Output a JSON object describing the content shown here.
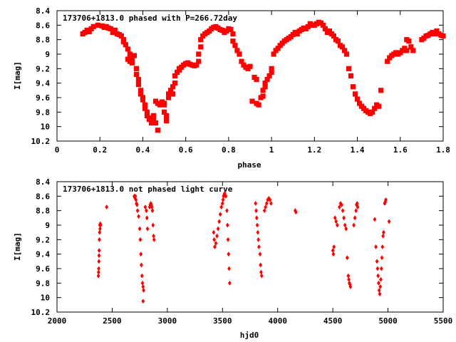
{
  "colors": {
    "points": "#ff0000",
    "axes": "#000000",
    "background": "#ffffff"
  },
  "chart_data": [
    {
      "type": "scatter",
      "title": "173706+1813.0 phased with P=266.72day",
      "xlabel": "phase",
      "ylabel": "I[mag]",
      "xlim": [
        0,
        1.8
      ],
      "ylim": [
        8.4,
        10.2
      ],
      "y_inverted": true,
      "xticks": [
        "0",
        "0.2",
        "0.4",
        "0.6",
        "0.8",
        "1",
        "1.2",
        "1.4",
        "1.6",
        "1.8"
      ],
      "yticks": [
        "8.4",
        "8.6",
        "8.8",
        "9",
        "9.2",
        "9.4",
        "9.6",
        "9.8",
        "10",
        "10.2"
      ],
      "grid": false,
      "legend": "none",
      "points": [
        [
          0.12,
          8.72
        ],
        [
          0.13,
          8.7
        ],
        [
          0.14,
          8.67
        ],
        [
          0.15,
          8.69
        ],
        [
          0.16,
          8.65
        ],
        [
          0.17,
          8.62
        ],
        [
          0.19,
          8.6
        ],
        [
          0.21,
          8.61
        ],
        [
          0.22,
          8.63
        ],
        [
          0.23,
          8.62
        ],
        [
          0.24,
          8.64
        ],
        [
          0.25,
          8.65
        ],
        [
          0.26,
          8.7
        ],
        [
          0.27,
          8.67
        ],
        [
          0.28,
          8.72
        ],
        [
          0.29,
          8.73
        ],
        [
          0.3,
          8.75
        ],
        [
          0.31,
          8.8
        ],
        [
          0.31,
          8.83
        ],
        [
          0.32,
          8.87
        ],
        [
          0.33,
          8.93
        ],
        [
          0.34,
          9.0
        ],
        [
          0.33,
          9.07
        ],
        [
          0.34,
          9.1
        ],
        [
          0.35,
          9.12
        ],
        [
          0.35,
          9.05
        ],
        [
          0.36,
          9.02
        ],
        [
          0.37,
          9.2
        ],
        [
          0.37,
          9.28
        ],
        [
          0.38,
          9.35
        ],
        [
          0.38,
          9.42
        ],
        [
          0.39,
          9.5
        ],
        [
          0.39,
          9.55
        ],
        [
          0.4,
          9.6
        ],
        [
          0.4,
          9.63
        ],
        [
          0.41,
          9.7
        ],
        [
          0.41,
          9.75
        ],
        [
          0.42,
          9.8
        ],
        [
          0.42,
          9.85
        ],
        [
          0.43,
          9.88
        ],
        [
          0.43,
          9.9
        ],
        [
          0.44,
          9.92
        ],
        [
          0.44,
          9.95
        ],
        [
          0.45,
          9.85
        ],
        [
          0.45,
          9.9
        ],
        [
          0.46,
          9.95
        ],
        [
          0.47,
          10.05
        ],
        [
          0.46,
          9.65
        ],
        [
          0.47,
          9.68
        ],
        [
          0.48,
          9.7
        ],
        [
          0.49,
          9.66
        ],
        [
          0.5,
          9.68
        ],
        [
          0.5,
          9.7
        ],
        [
          0.5,
          9.8
        ],
        [
          0.51,
          9.85
        ],
        [
          0.51,
          9.92
        ],
        [
          0.52,
          9.6
        ],
        [
          0.52,
          9.55
        ],
        [
          0.53,
          9.5
        ],
        [
          0.54,
          9.45
        ],
        [
          0.54,
          9.55
        ],
        [
          0.55,
          9.4
        ],
        [
          0.55,
          9.3
        ],
        [
          0.56,
          9.25
        ],
        [
          0.57,
          9.22
        ],
        [
          0.57,
          9.2
        ],
        [
          0.58,
          9.18
        ],
        [
          0.59,
          9.15
        ],
        [
          0.6,
          9.13
        ],
        [
          0.61,
          9.12
        ],
        [
          0.62,
          9.14
        ],
        [
          0.63,
          9.15
        ],
        [
          0.64,
          9.16
        ],
        [
          0.65,
          9.15
        ],
        [
          0.66,
          9.1
        ],
        [
          0.66,
          9.0
        ],
        [
          0.67,
          8.9
        ],
        [
          0.67,
          8.8
        ],
        [
          0.68,
          8.75
        ],
        [
          0.69,
          8.72
        ],
        [
          0.7,
          8.7
        ],
        [
          0.71,
          8.68
        ],
        [
          0.72,
          8.65
        ],
        [
          0.73,
          8.63
        ],
        [
          0.74,
          8.62
        ],
        [
          0.75,
          8.64
        ],
        [
          0.76,
          8.66
        ],
        [
          0.77,
          8.67
        ],
        [
          0.78,
          8.7
        ],
        [
          0.79,
          8.68
        ],
        [
          0.8,
          8.65
        ],
        [
          0.81,
          8.66
        ],
        [
          0.82,
          8.72
        ],
        [
          0.82,
          8.82
        ],
        [
          0.83,
          8.88
        ],
        [
          0.84,
          8.95
        ],
        [
          0.85,
          9.0
        ],
        [
          0.86,
          9.1
        ],
        [
          0.87,
          9.15
        ],
        [
          0.88,
          9.18
        ],
        [
          0.89,
          9.2
        ],
        [
          0.9,
          9.17
        ],
        [
          0.91,
          9.65
        ],
        [
          0.92,
          9.32
        ],
        [
          0.93,
          9.35
        ],
        [
          0.93,
          9.68
        ],
        [
          0.94,
          9.7
        ],
        [
          0.95,
          9.6
        ],
        [
          0.96,
          9.58
        ],
        [
          0.96,
          9.5
        ],
        [
          0.97,
          9.45
        ],
        [
          0.97,
          9.4
        ],
        [
          0.98,
          9.35
        ],
        [
          0.99,
          9.3
        ],
        [
          1.0,
          9.25
        ],
        [
          1.0,
          9.2
        ],
        [
          1.01,
          9.0
        ],
        [
          1.02,
          8.95
        ],
        [
          1.03,
          8.92
        ],
        [
          1.04,
          8.88
        ],
        [
          1.05,
          8.85
        ],
        [
          1.06,
          8.82
        ],
        [
          1.07,
          8.8
        ],
        [
          1.08,
          8.78
        ],
        [
          1.09,
          8.76
        ],
        [
          1.1,
          8.73
        ],
        [
          1.11,
          8.7
        ],
        [
          1.12,
          8.72
        ],
        [
          1.13,
          8.68
        ],
        [
          1.14,
          8.66
        ],
        [
          1.15,
          8.64
        ],
        [
          1.16,
          8.65
        ],
        [
          1.17,
          8.62
        ],
        [
          1.18,
          8.58
        ],
        [
          1.19,
          8.6
        ],
        [
          1.2,
          8.6
        ],
        [
          1.21,
          8.58
        ],
        [
          1.22,
          8.56
        ],
        [
          1.23,
          8.57
        ],
        [
          1.24,
          8.6
        ],
        [
          1.25,
          8.65
        ],
        [
          1.26,
          8.7
        ],
        [
          1.27,
          8.68
        ],
        [
          1.28,
          8.72
        ],
        [
          1.29,
          8.75
        ],
        [
          1.3,
          8.8
        ],
        [
          1.31,
          8.82
        ],
        [
          1.32,
          8.88
        ],
        [
          1.33,
          8.9
        ],
        [
          1.34,
          8.95
        ],
        [
          1.35,
          9.0
        ],
        [
          1.36,
          9.2
        ],
        [
          1.37,
          9.3
        ],
        [
          1.38,
          9.45
        ],
        [
          1.39,
          9.55
        ],
        [
          1.4,
          9.62
        ],
        [
          1.41,
          9.68
        ],
        [
          1.42,
          9.72
        ],
        [
          1.43,
          9.75
        ],
        [
          1.44,
          9.78
        ],
        [
          1.45,
          9.8
        ],
        [
          1.46,
          9.82
        ],
        [
          1.47,
          9.8
        ],
        [
          1.48,
          9.75
        ],
        [
          1.49,
          9.7
        ],
        [
          1.5,
          9.72
        ],
        [
          1.51,
          9.5
        ],
        [
          1.54,
          9.1
        ],
        [
          1.55,
          9.05
        ],
        [
          1.56,
          9.02
        ],
        [
          1.57,
          9.0
        ],
        [
          1.58,
          8.98
        ],
        [
          1.59,
          9.0
        ],
        [
          1.6,
          8.98
        ],
        [
          1.61,
          8.95
        ],
        [
          1.62,
          8.92
        ],
        [
          1.63,
          8.95
        ],
        [
          1.63,
          8.8
        ],
        [
          1.64,
          8.82
        ],
        [
          1.65,
          8.9
        ],
        [
          1.66,
          8.95
        ],
        [
          1.7,
          8.8
        ],
        [
          1.71,
          8.78
        ],
        [
          1.72,
          8.75
        ],
        [
          1.73,
          8.74
        ],
        [
          1.74,
          8.72
        ],
        [
          1.75,
          8.7
        ],
        [
          1.76,
          8.72
        ],
        [
          1.77,
          8.68
        ],
        [
          1.78,
          8.72
        ],
        [
          1.79,
          8.74
        ],
        [
          1.8,
          8.75
        ]
      ]
    },
    {
      "type": "scatter",
      "title": "173706+1813.0 not phased light curve",
      "xlabel": "hjd0",
      "ylabel": "I[mag]",
      "xlim": [
        2000,
        5500
      ],
      "ylim": [
        8.4,
        10.2
      ],
      "y_inverted": true,
      "xticks": [
        "2000",
        "2500",
        "3000",
        "3500",
        "4000",
        "4500",
        "5000",
        "5500"
      ],
      "yticks": [
        "8.4",
        "8.6",
        "8.8",
        "9",
        "9.2",
        "9.4",
        "9.6",
        "9.8",
        "10",
        "10.2"
      ],
      "grid": false,
      "legend": "none",
      "points": [
        [
          2375,
          9.7
        ],
        [
          2377,
          9.65
        ],
        [
          2378,
          9.6
        ],
        [
          2380,
          9.5
        ],
        [
          2381,
          9.42
        ],
        [
          2382,
          9.35
        ],
        [
          2384,
          9.2
        ],
        [
          2386,
          9.1
        ],
        [
          2388,
          9.0
        ],
        [
          2390,
          9.05
        ],
        [
          2392,
          8.98
        ],
        [
          2395,
          9.0
        ],
        [
          2450,
          8.75
        ],
        [
          2700,
          8.6
        ],
        [
          2705,
          8.62
        ],
        [
          2710,
          8.6
        ],
        [
          2715,
          8.65
        ],
        [
          2720,
          8.7
        ],
        [
          2725,
          8.72
        ],
        [
          2730,
          8.8
        ],
        [
          2740,
          8.88
        ],
        [
          2750,
          9.05
        ],
        [
          2755,
          9.2
        ],
        [
          2760,
          9.4
        ],
        [
          2765,
          9.55
        ],
        [
          2770,
          9.7
        ],
        [
          2775,
          9.8
        ],
        [
          2780,
          9.85
        ],
        [
          2785,
          9.9
        ],
        [
          2780,
          10.05
        ],
        [
          2800,
          8.75
        ],
        [
          2810,
          8.8
        ],
        [
          2815,
          8.9
        ],
        [
          2820,
          9.05
        ],
        [
          2840,
          8.75
        ],
        [
          2845,
          8.72
        ],
        [
          2850,
          8.7
        ],
        [
          2855,
          8.72
        ],
        [
          2860,
          8.75
        ],
        [
          2865,
          8.8
        ],
        [
          2870,
          9.0
        ],
        [
          2875,
          9.15
        ],
        [
          2880,
          9.2
        ],
        [
          3420,
          9.1
        ],
        [
          3425,
          9.2
        ],
        [
          3430,
          9.3
        ],
        [
          3440,
          9.25
        ],
        [
          3450,
          9.15
        ],
        [
          3460,
          9.05
        ],
        [
          3470,
          8.95
        ],
        [
          3480,
          8.85
        ],
        [
          3490,
          8.75
        ],
        [
          3500,
          8.7
        ],
        [
          3505,
          8.65
        ],
        [
          3510,
          8.6
        ],
        [
          3515,
          8.58
        ],
        [
          3520,
          8.56
        ],
        [
          3530,
          8.6
        ],
        [
          3540,
          8.8
        ],
        [
          3545,
          9.0
        ],
        [
          3550,
          9.2
        ],
        [
          3555,
          9.4
        ],
        [
          3560,
          9.6
        ],
        [
          3565,
          9.8
        ],
        [
          3800,
          8.7
        ],
        [
          3805,
          8.8
        ],
        [
          3810,
          8.9
        ],
        [
          3815,
          9.0
        ],
        [
          3820,
          9.1
        ],
        [
          3825,
          9.2
        ],
        [
          3830,
          9.3
        ],
        [
          3840,
          9.4
        ],
        [
          3845,
          9.55
        ],
        [
          3850,
          9.65
        ],
        [
          3855,
          9.7
        ],
        [
          3880,
          8.8
        ],
        [
          3890,
          8.75
        ],
        [
          3900,
          8.7
        ],
        [
          3910,
          8.65
        ],
        [
          3920,
          8.63
        ],
        [
          3930,
          8.65
        ],
        [
          3940,
          8.7
        ],
        [
          4160,
          8.8
        ],
        [
          4165,
          8.82
        ],
        [
          4500,
          9.35
        ],
        [
          4505,
          9.4
        ],
        [
          4510,
          9.3
        ],
        [
          4520,
          8.9
        ],
        [
          4530,
          8.95
        ],
        [
          4540,
          9.0
        ],
        [
          4560,
          8.75
        ],
        [
          4570,
          8.7
        ],
        [
          4580,
          8.72
        ],
        [
          4590,
          8.8
        ],
        [
          4600,
          8.9
        ],
        [
          4610,
          9.0
        ],
        [
          4620,
          9.05
        ],
        [
          4630,
          9.45
        ],
        [
          4640,
          9.7
        ],
        [
          4645,
          9.75
        ],
        [
          4650,
          9.8
        ],
        [
          4655,
          9.82
        ],
        [
          4660,
          9.85
        ],
        [
          4690,
          9.0
        ],
        [
          4700,
          8.9
        ],
        [
          4710,
          8.8
        ],
        [
          4715,
          8.72
        ],
        [
          4720,
          8.7
        ],
        [
          4725,
          8.75
        ],
        [
          4880,
          8.92
        ],
        [
          4890,
          9.3
        ],
        [
          4900,
          9.5
        ],
        [
          4905,
          9.6
        ],
        [
          4910,
          9.7
        ],
        [
          4915,
          9.8
        ],
        [
          4920,
          9.9
        ],
        [
          4925,
          9.95
        ],
        [
          4930,
          9.85
        ],
        [
          4935,
          9.75
        ],
        [
          4940,
          9.6
        ],
        [
          4945,
          9.45
        ],
        [
          4950,
          9.3
        ],
        [
          4955,
          9.15
        ],
        [
          4960,
          9.1
        ],
        [
          4970,
          8.7
        ],
        [
          4975,
          8.68
        ],
        [
          4980,
          8.65
        ],
        [
          5010,
          8.95
        ]
      ]
    }
  ]
}
